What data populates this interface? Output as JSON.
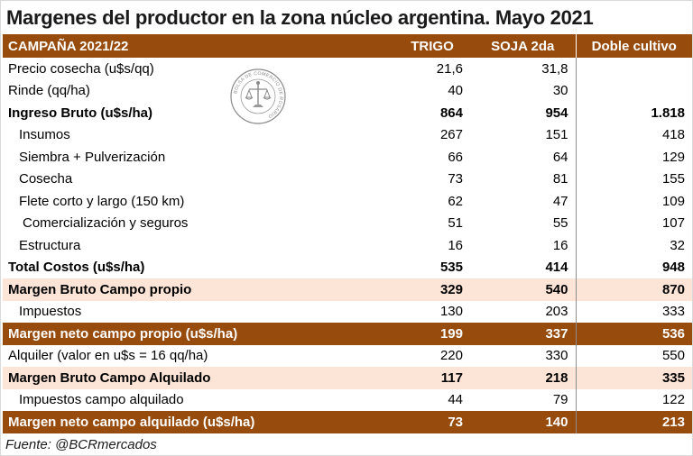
{
  "title": "Margenes del productor en la zona núcleo argentina. Mayo 2021",
  "header": {
    "label": "CAMPAÑA 2021/22",
    "col1": "TRIGO",
    "col2": "SOJA 2da",
    "col3": "Doble cultivo"
  },
  "rows": [
    {
      "label": "Precio cosecha (u$s/qq)",
      "v1": "21,6",
      "v2": "31,8",
      "v3": ""
    },
    {
      "label": "Rinde (qq/ha)",
      "v1": "40",
      "v2": "30",
      "v3": ""
    },
    {
      "label": "Ingreso Bruto (u$s/ha)",
      "v1": "864",
      "v2": "954",
      "v3": "1.818"
    },
    {
      "label": "Insumos",
      "v1": "267",
      "v2": "151",
      "v3": "418"
    },
    {
      "label": "Siembra + Pulverización",
      "v1": "66",
      "v2": "64",
      "v3": "129"
    },
    {
      "label": "Cosecha",
      "v1": "73",
      "v2": "81",
      "v3": "155"
    },
    {
      "label": "Flete corto y largo (150 km)",
      "v1": "62",
      "v2": "47",
      "v3": "109"
    },
    {
      "label": "Comercialización y seguros",
      "v1": "51",
      "v2": "55",
      "v3": "107"
    },
    {
      "label": "Estructura",
      "v1": "16",
      "v2": "16",
      "v3": "32"
    },
    {
      "label": "Total Costos (u$s/ha)",
      "v1": "535",
      "v2": "414",
      "v3": "948"
    },
    {
      "label": "Margen Bruto Campo propio",
      "v1": "329",
      "v2": "540",
      "v3": "870"
    },
    {
      "label": "Impuestos",
      "v1": "130",
      "v2": "203",
      "v3": "333"
    },
    {
      "label": "Margen neto campo propio (u$s/ha)",
      "v1": "199",
      "v2": "337",
      "v3": "536"
    },
    {
      "label": "Alquiler (valor en u$s = 16 qq/ha)",
      "v1": "220",
      "v2": "330",
      "v3": "550"
    },
    {
      "label": "Margen Bruto Campo Alquilado",
      "v1": "117",
      "v2": "218",
      "v3": "335"
    },
    {
      "label": "Impuestos campo alquilado",
      "v1": "44",
      "v2": "79",
      "v3": "122"
    },
    {
      "label": "Margen neto campo alquilado (u$s/ha)",
      "v1": "73",
      "v2": "140",
      "v3": "213"
    }
  ],
  "seal": {
    "text": "BOLSA DE COMERCIO DE ROSARIO"
  },
  "source": "Fuente: @BCRmercados",
  "colors": {
    "header_bg": "#974b0d",
    "highlight_bg": "#fce4d6",
    "header_text": "#ffffff"
  }
}
